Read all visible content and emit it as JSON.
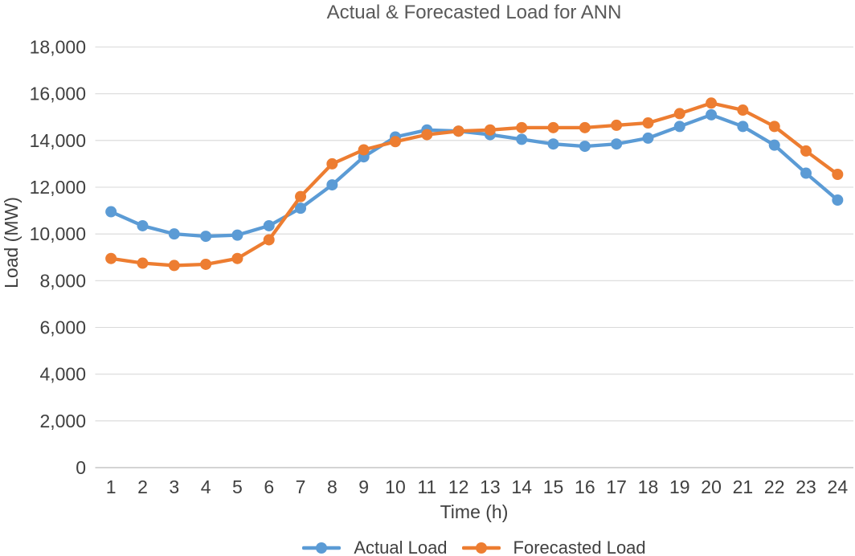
{
  "title": "Actual & Forecasted Load for ANN",
  "chart_data": {
    "type": "line",
    "title": "Actual & Forecasted Load for ANN",
    "xlabel": "Time (h)",
    "ylabel": "Load (MW)",
    "x": [
      1,
      2,
      3,
      4,
      5,
      6,
      7,
      8,
      9,
      10,
      11,
      12,
      13,
      14,
      15,
      16,
      17,
      18,
      19,
      20,
      21,
      22,
      23,
      24
    ],
    "xtick_labels": [
      "1",
      "2",
      "3",
      "4",
      "5",
      "6",
      "7",
      "8",
      "9",
      "10",
      "11",
      "12",
      "13",
      "14",
      "15",
      "16",
      "17",
      "18",
      "19",
      "20",
      "21",
      "22",
      "23",
      "24"
    ],
    "series": [
      {
        "name": "Actual Load",
        "color": "#5B9BD5",
        "values": [
          10950,
          10350,
          10000,
          9900,
          9950,
          10350,
          11100,
          12100,
          13300,
          14150,
          14450,
          14400,
          14250,
          14050,
          13850,
          13750,
          13850,
          14100,
          14600,
          15100,
          14600,
          13800,
          12600,
          11450
        ]
      },
      {
        "name": "Forecasted Load",
        "color": "#ED7D31",
        "values": [
          8950,
          8750,
          8650,
          8700,
          8950,
          9750,
          11600,
          13000,
          13600,
          13950,
          14250,
          14400,
          14450,
          14550,
          14550,
          14550,
          14650,
          14750,
          15150,
          15600,
          15300,
          14600,
          13550,
          12550
        ]
      }
    ],
    "ylim": [
      0,
      18000
    ],
    "ytick_step": 2000,
    "ytick_labels": [
      "0",
      "2,000",
      "4,000",
      "6,000",
      "8,000",
      "10,000",
      "12,000",
      "14,000",
      "16,000",
      "18,000"
    ],
    "grid": true,
    "legend_position": "bottom",
    "gridline_color": "#D9D9D9",
    "axisline_color": "#C6C6C6",
    "tick_text_color": "#404040",
    "title_color": "#595959"
  },
  "legend": {
    "items": [
      {
        "label": "Actual Load",
        "color": "#5B9BD5"
      },
      {
        "label": "Forecasted Load",
        "color": "#ED7D31"
      }
    ]
  }
}
